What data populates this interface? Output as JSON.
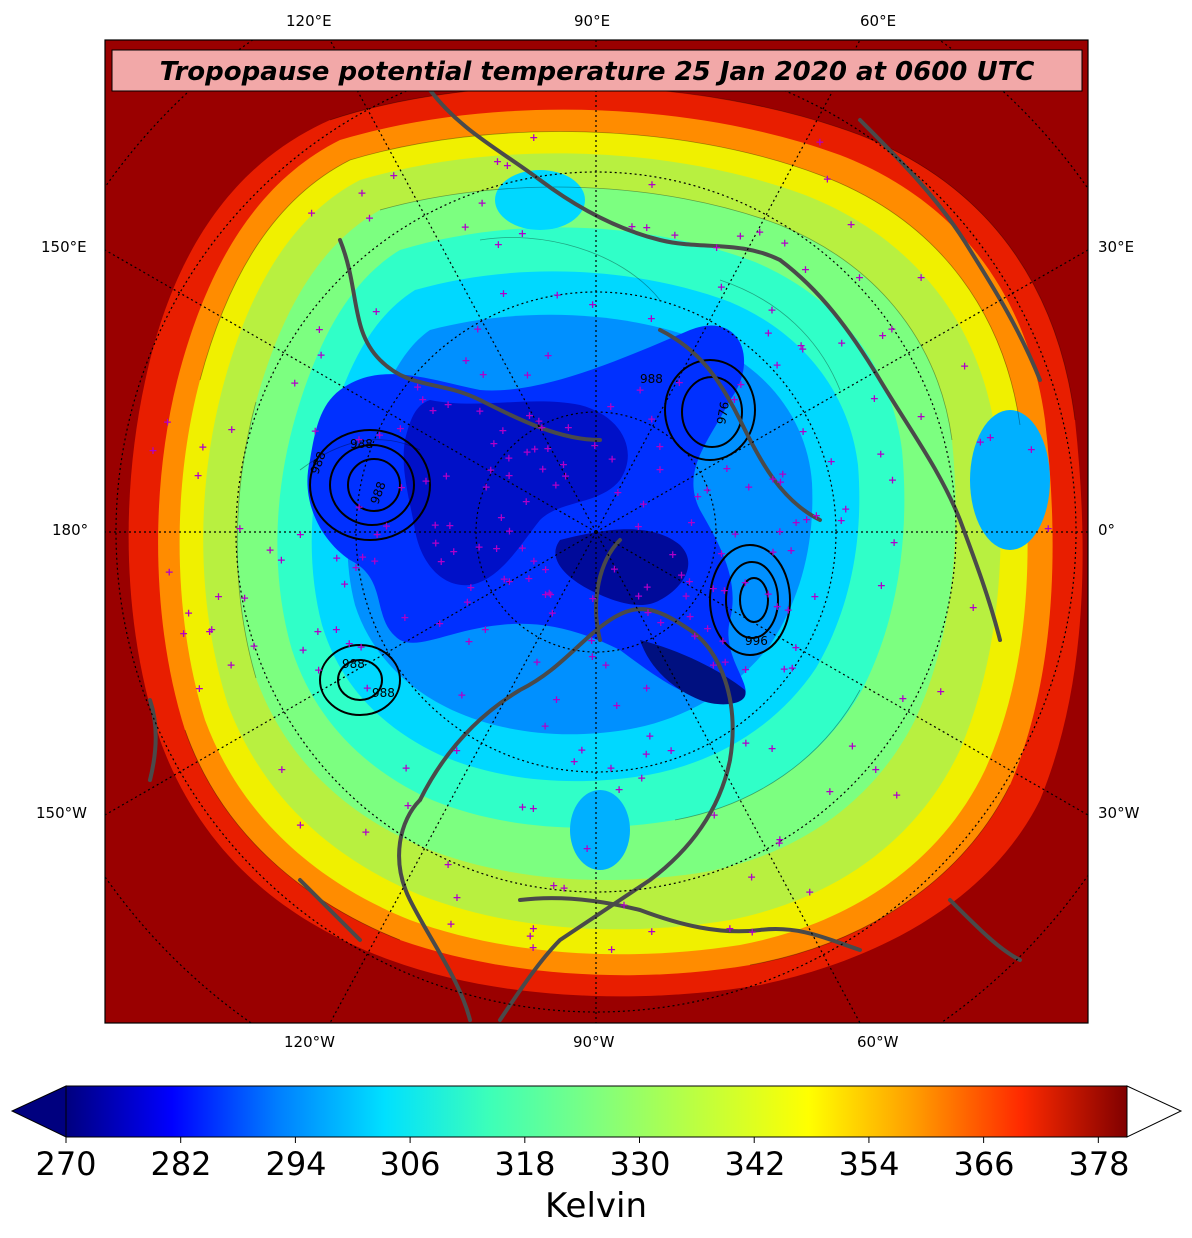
{
  "title": "Tropopause potential temperature 25 Jan 2020 at 0600 UTC",
  "colors": {
    "title_box_fill": "#f2a8a8",
    "coastline": "#4a4a4a",
    "station_marker": "#b000c8",
    "graticule": "#000000"
  },
  "labels": {
    "top": [
      "120°E",
      "90°E",
      "60°E"
    ],
    "bottom": [
      "120°W",
      "90°W",
      "60°W"
    ],
    "left": [
      "150°E",
      "180°",
      "150°W"
    ],
    "right": [
      "30°E",
      "0°",
      "30°W"
    ]
  },
  "contour_labels": [
    "988",
    "988",
    "988",
    "988",
    "976",
    "996",
    "988",
    "988"
  ],
  "colorbar": {
    "unit": "Kelvin",
    "ticks": [
      "270",
      "282",
      "294",
      "306",
      "318",
      "330",
      "342",
      "354",
      "366",
      "378"
    ],
    "min": 270,
    "max": 381,
    "extend": "both",
    "colormap": [
      "#00007f",
      "#0000ff",
      "#007fff",
      "#00e0ff",
      "#3dffb8",
      "#7fff7f",
      "#c0ff3d",
      "#ffff00",
      "#ff9c00",
      "#ff2a00",
      "#800000"
    ]
  },
  "chart_data": {
    "type": "heatmap",
    "variable": "Tropopause potential temperature",
    "units": "Kelvin",
    "valid_time": "25 Jan 2020 0600 UTC",
    "projection": "north-polar-stereographic",
    "color_range": [
      270,
      381
    ],
    "colorbar_ticks": [
      270,
      282,
      294,
      306,
      318,
      330,
      342,
      354,
      366,
      378
    ],
    "longitude_labels": [
      "120°E",
      "90°E",
      "60°E",
      "150°E",
      "180°",
      "150°W",
      "30°E",
      "0°",
      "30°W",
      "120°W",
      "90°W",
      "60°W"
    ],
    "overlays": [
      "surface pressure low contours (hPa)",
      "coastlines and political boundaries",
      "observation station markers"
    ]
  }
}
